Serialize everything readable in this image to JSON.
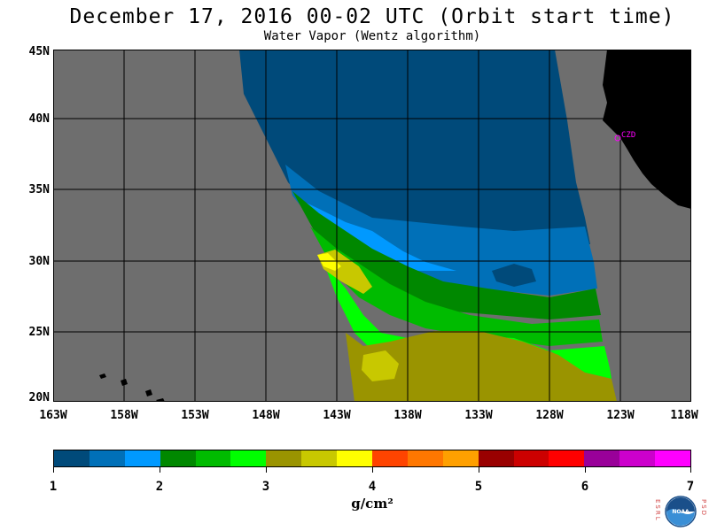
{
  "header": {
    "title": "December 17, 2016  00-02 UTC  (Orbit start time)",
    "subtitle": "Water Vapor (Wentz algorithm)"
  },
  "map": {
    "lat_labels": [
      "45N",
      "40N",
      "35N",
      "30N",
      "25N",
      "20N"
    ],
    "lon_labels": [
      "163W",
      "158W",
      "153W",
      "148W",
      "143W",
      "138W",
      "133W",
      "128W",
      "123W",
      "118W"
    ],
    "lat_range": [
      20,
      45
    ],
    "lon_range": [
      -163,
      -118
    ],
    "colors": {
      "background_land_mask": "#6e6e6e",
      "land": "#000000",
      "gridline": "#000000"
    },
    "station": {
      "label": "CZD",
      "color": "#ff00ff"
    }
  },
  "legend": {
    "colors": [
      "#004a7a",
      "#0070b8",
      "#0099ff",
      "#008800",
      "#00bb00",
      "#00ff00",
      "#9a9400",
      "#c8c800",
      "#ffff00",
      "#ff4400",
      "#ff7700",
      "#ffa000",
      "#990000",
      "#cc0000",
      "#ff0000",
      "#990099",
      "#cc00cc",
      "#ff00ff"
    ],
    "tick_labels": [
      "1",
      "2",
      "3",
      "4",
      "5",
      "6",
      "7"
    ],
    "units": "g/cm²"
  },
  "logo": {
    "left_letters": "ESRL",
    "right_letters": "PSD",
    "center_text": "NOAA"
  }
}
